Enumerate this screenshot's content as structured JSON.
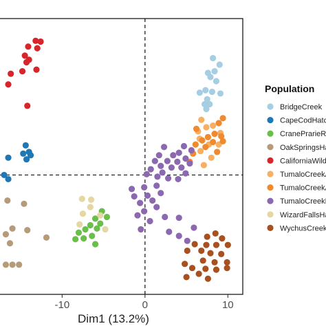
{
  "chart_data": {
    "type": "scatter",
    "xlabel": "Dim1 (13.2%)",
    "ylabel": "",
    "xlim": [
      -17.5,
      11.8
    ],
    "ylim": [
      -14.5,
      19
    ],
    "x_ticks": [
      -10,
      0,
      10
    ],
    "x_tick_labels": [
      "-10",
      "0",
      "10"
    ],
    "reference_lines": {
      "x": 0,
      "y": 0,
      "style": "dashed"
    },
    "grid": false,
    "legend": {
      "title": "Population",
      "placement": "right",
      "entries": [
        {
          "label": "BridgeCreek",
          "color": "#a6cee3"
        },
        {
          "label": "CapeCodHatc",
          "color": "#1f78b4"
        },
        {
          "label": "CranePrarieRe",
          "color": "#6abf4b"
        },
        {
          "label": "OakSpringsHa",
          "color": "#b59b7a"
        },
        {
          "label": "CaliforniaWild",
          "color": "#d7262b"
        },
        {
          "label": "TumaloCreekA",
          "color": "#f7b063"
        },
        {
          "label": "TumaloCreekA",
          "color": "#ef8a2e"
        },
        {
          "label": "TumaloCreekF",
          "color": "#8c68b0"
        },
        {
          "label": "WizardFallsHa",
          "color": "#e5d7a3"
        },
        {
          "label": "WychusCreek",
          "color": "#a8501f"
        }
      ]
    },
    "series": [
      {
        "color": "#a6cee3",
        "points": [
          [
            8.2,
            14.2
          ],
          [
            9.0,
            13.4
          ],
          [
            7.6,
            12.4
          ],
          [
            8.4,
            12.6
          ],
          [
            7.9,
            11.9
          ],
          [
            8.6,
            11.4
          ],
          [
            6.6,
            10.0
          ],
          [
            7.3,
            10.3
          ],
          [
            8.1,
            10.1
          ],
          [
            9.1,
            9.9
          ],
          [
            7.5,
            9.2
          ],
          [
            7.8,
            8.6
          ],
          [
            7.2,
            8.6
          ],
          [
            7.4,
            8.0
          ]
        ]
      },
      {
        "color": "#1f78b4",
        "points": [
          [
            -14.4,
            3.6
          ],
          [
            -14.0,
            2.8
          ],
          [
            -14.7,
            2.6
          ],
          [
            -13.8,
            2.4
          ],
          [
            -14.3,
            1.9
          ],
          [
            -16.5,
            2.1
          ],
          [
            -17.0,
            0.0
          ],
          [
            -16.5,
            -0.5
          ]
        ]
      },
      {
        "color": "#6abf4b",
        "points": [
          [
            -5.2,
            -4.4
          ],
          [
            -4.6,
            -5.1
          ],
          [
            -6.0,
            -5.3
          ],
          [
            -5.4,
            -5.9
          ],
          [
            -6.6,
            -6.1
          ],
          [
            -5.8,
            -6.5
          ],
          [
            -7.2,
            -6.6
          ],
          [
            -6.4,
            -7.4
          ],
          [
            -8.0,
            -7.0
          ],
          [
            -8.4,
            -7.8
          ],
          [
            -7.4,
            -7.7
          ],
          [
            -6.0,
            -8.4
          ]
        ]
      },
      {
        "color": "#b59b7a",
        "points": [
          [
            -14.6,
            -3.5
          ],
          [
            -16.6,
            -3.1
          ],
          [
            -16.0,
            -6.5
          ],
          [
            -14.2,
            -6.7
          ],
          [
            -16.8,
            -7.2
          ],
          [
            -16.3,
            -8.3
          ],
          [
            -11.9,
            -7.6
          ],
          [
            -16.8,
            -10.9
          ],
          [
            -16.0,
            -10.9
          ],
          [
            -15.2,
            -10.9
          ]
        ]
      },
      {
        "color": "#d7262b",
        "points": [
          [
            -13.2,
            16.3
          ],
          [
            -12.6,
            16.2
          ],
          [
            -13.0,
            15.4
          ],
          [
            -14.1,
            15.6
          ],
          [
            -14.5,
            14.5
          ],
          [
            -14.0,
            14.0
          ],
          [
            -14.3,
            13.7
          ],
          [
            -13.1,
            12.8
          ],
          [
            -14.8,
            12.6
          ],
          [
            -16.2,
            12.3
          ],
          [
            -16.5,
            11.0
          ],
          [
            -14.2,
            8.4
          ]
        ]
      },
      {
        "color": "#f7b063",
        "points": [
          [
            6.8,
            6.7
          ],
          [
            8.2,
            6.0
          ],
          [
            7.4,
            5.8
          ],
          [
            6.4,
            5.3
          ],
          [
            9.1,
            5.1
          ],
          [
            6.6,
            4.4
          ],
          [
            7.7,
            3.7
          ],
          [
            8.9,
            3.7
          ],
          [
            6.7,
            2.9
          ],
          [
            8.0,
            2.1
          ],
          [
            7.1,
            1.2
          ]
        ]
      },
      {
        "color": "#ef8a2e",
        "points": [
          [
            9.4,
            6.9
          ],
          [
            8.9,
            6.3
          ],
          [
            6.2,
            5.6
          ],
          [
            8.4,
            5.0
          ],
          [
            9.2,
            4.7
          ],
          [
            7.6,
            4.6
          ],
          [
            6.9,
            4.2
          ],
          [
            8.2,
            4.0
          ],
          [
            9.4,
            4.1
          ],
          [
            7.3,
            3.4
          ],
          [
            8.7,
            2.8
          ],
          [
            6.1,
            3.7
          ],
          [
            5.8,
            2.6
          ],
          [
            5.4,
            1.6
          ]
        ]
      },
      {
        "color": "#8c68b0",
        "points": [
          [
            4.7,
            3.5
          ],
          [
            2.3,
            3.4
          ],
          [
            5.6,
            3.0
          ],
          [
            4.1,
            2.7
          ],
          [
            1.7,
            2.4
          ],
          [
            3.4,
            2.4
          ],
          [
            4.9,
            2.0
          ],
          [
            1.2,
            1.7
          ],
          [
            2.7,
            1.7
          ],
          [
            3.9,
            1.6
          ],
          [
            5.4,
            1.4
          ],
          [
            1.9,
            1.1
          ],
          [
            3.2,
            0.9
          ],
          [
            4.4,
            0.9
          ],
          [
            0.7,
            0.7
          ],
          [
            2.1,
            0.3
          ],
          [
            4.9,
            0.2
          ],
          [
            0.2,
            0.1
          ],
          [
            1.5,
            -0.2
          ],
          [
            2.8,
            -0.4
          ],
          [
            4.0,
            -0.5
          ],
          [
            -1.6,
            -1.7
          ],
          [
            -0.1,
            -1.5
          ],
          [
            1.4,
            -1.3
          ],
          [
            -1.3,
            -2.6
          ],
          [
            0.3,
            -2.5
          ],
          [
            1.9,
            -2.2
          ],
          [
            0.9,
            -3.1
          ],
          [
            -0.6,
            -3.4
          ],
          [
            -0.1,
            -4.4
          ],
          [
            1.4,
            -3.9
          ],
          [
            -0.9,
            -4.9
          ],
          [
            0.6,
            -5.6
          ],
          [
            2.4,
            -5.1
          ],
          [
            4.1,
            -5.2
          ],
          [
            -0.5,
            -6.6
          ],
          [
            5.9,
            -6.4
          ],
          [
            2.9,
            -6.9
          ],
          [
            4.1,
            -7.4
          ],
          [
            5.1,
            -8.0
          ]
        ]
      },
      {
        "color": "#e5d7a3",
        "points": [
          [
            -7.6,
            -2.9
          ],
          [
            -6.5,
            -3.0
          ],
          [
            -6.6,
            -3.9
          ],
          [
            -7.5,
            -4.7
          ],
          [
            -5.4,
            -4.9
          ],
          [
            -7.9,
            -6.0
          ],
          [
            -4.8,
            -6.6
          ]
        ]
      },
      {
        "color": "#a8501f",
        "points": [
          [
            7.5,
            -7.5
          ],
          [
            8.5,
            -7.1
          ],
          [
            9.3,
            -7.7
          ],
          [
            6.0,
            -8.4
          ],
          [
            7.4,
            -8.5
          ],
          [
            8.6,
            -8.5
          ],
          [
            10.0,
            -8.5
          ],
          [
            5.1,
            -9.2
          ],
          [
            6.8,
            -9.2
          ],
          [
            7.9,
            -9.5
          ],
          [
            9.2,
            -9.6
          ],
          [
            7.0,
            -10.4
          ],
          [
            8.4,
            -10.6
          ],
          [
            9.9,
            -10.6
          ],
          [
            4.8,
            -10.8
          ],
          [
            5.7,
            -11.3
          ],
          [
            7.3,
            -11.4
          ],
          [
            8.6,
            -11.5
          ],
          [
            9.9,
            -11.3
          ],
          [
            6.5,
            -12.0
          ],
          [
            5.0,
            -12.4
          ],
          [
            7.6,
            -12.6
          ]
        ]
      }
    ]
  }
}
